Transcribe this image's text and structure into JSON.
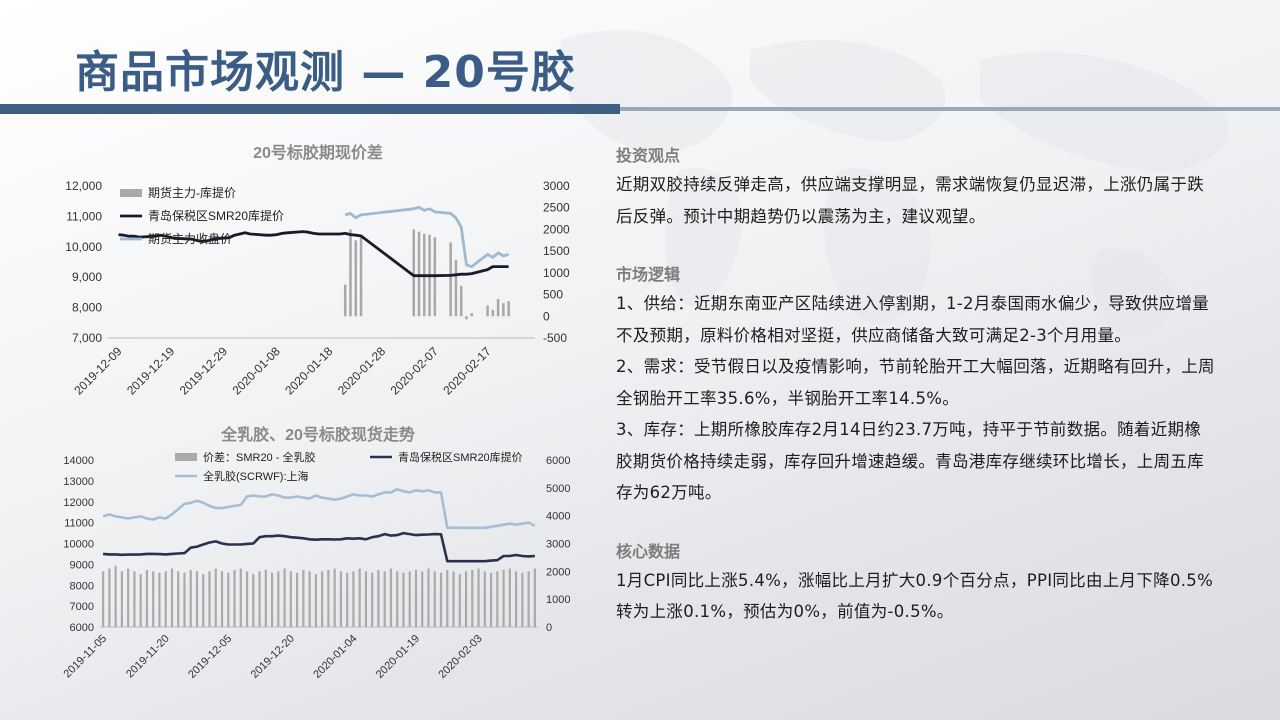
{
  "page_title": "商品市场观测 — 20号胶",
  "chart_data": [
    {
      "type": "bar",
      "title": "20号标胶期现价差",
      "x_ticks": [
        "2019-12-09",
        "2019-12-19",
        "2019-12-29",
        "2020-01-08",
        "2020-01-18",
        "2020-01-28",
        "2020-02-07",
        "2020-02-17"
      ],
      "y_left": {
        "range": [
          7000,
          12000
        ],
        "ticks": [
          "12,000",
          "11,000",
          "10,000",
          "9,000",
          "8,000",
          "7,000"
        ]
      },
      "y_right": {
        "range": [
          -500,
          3000
        ],
        "ticks": [
          "3000",
          "2500",
          "2000",
          "1500",
          "1000",
          "500",
          "0",
          "-500"
        ]
      },
      "series": [
        {
          "name": "期货主力-库提价",
          "axis": "right",
          "kind": "bar",
          "color": "#a8a8a8",
          "x": [
            "2020-01-21",
            "2020-01-22",
            "2020-01-23",
            "2020-01-24",
            "2020-02-03",
            "2020-02-04",
            "2020-02-05",
            "2020-02-06",
            "2020-02-07",
            "2020-02-10",
            "2020-02-11",
            "2020-02-12",
            "2020-02-13",
            "2020-02-14",
            "2020-02-17",
            "2020-02-18",
            "2020-02-19",
            "2020-02-20",
            "2020-02-21"
          ],
          "values": [
            730,
            2000,
            1750,
            1850,
            2000,
            1950,
            1900,
            1880,
            1820,
            1700,
            1300,
            700,
            -70,
            70,
            250,
            150,
            400,
            300,
            350
          ]
        },
        {
          "name": "青岛保税区SMR20库提价",
          "axis": "left",
          "kind": "line",
          "color": "#1a1a2a",
          "x": [
            "2019-12-09",
            "2019-12-10",
            "2019-12-11",
            "2019-12-12",
            "2019-12-13",
            "2019-12-16",
            "2019-12-17",
            "2019-12-18",
            "2019-12-19",
            "2019-12-20",
            "2019-12-23",
            "2019-12-24",
            "2019-12-25",
            "2019-12-26",
            "2019-12-27",
            "2019-12-30",
            "2019-12-31",
            "2020-01-02",
            "2020-01-03",
            "2020-01-06",
            "2020-01-07",
            "2020-01-08",
            "2020-01-09",
            "2020-01-10",
            "2020-01-13",
            "2020-01-14",
            "2020-01-15",
            "2020-01-16",
            "2020-01-17",
            "2020-01-20",
            "2020-01-21",
            "2020-01-22",
            "2020-01-23",
            "2020-01-24",
            "2020-02-03",
            "2020-02-04",
            "2020-02-05",
            "2020-02-06",
            "2020-02-07",
            "2020-02-10",
            "2020-02-11",
            "2020-02-12",
            "2020-02-13",
            "2020-02-14",
            "2020-02-17",
            "2020-02-18",
            "2020-02-19",
            "2020-02-20",
            "2020-02-21"
          ],
          "values": [
            10400,
            10380,
            10350,
            10350,
            10320,
            10350,
            10380,
            10350,
            10300,
            10280,
            10250,
            10200,
            10180,
            10200,
            10260,
            10300,
            10380,
            10460,
            10420,
            10380,
            10380,
            10400,
            10440,
            10460,
            10500,
            10480,
            10440,
            10420,
            10420,
            10420,
            10440,
            10400,
            10380,
            10360,
            9050,
            9050,
            9050,
            9050,
            9050,
            9060,
            9080,
            9100,
            9100,
            9120,
            9250,
            9350,
            9350,
            9350,
            9350
          ]
        },
        {
          "name": "期货主力收盘价",
          "axis": "left",
          "kind": "line",
          "color": "#9fb9d2",
          "x": [
            "2020-01-21",
            "2020-01-22",
            "2020-01-23",
            "2020-01-24",
            "2020-02-03",
            "2020-02-04",
            "2020-02-05",
            "2020-02-06",
            "2020-02-07",
            "2020-02-10",
            "2020-02-11",
            "2020-02-12",
            "2020-02-13",
            "2020-02-14",
            "2020-02-17",
            "2020-02-18",
            "2020-02-19",
            "2020-02-20",
            "2020-02-21"
          ],
          "values": [
            11050,
            11100,
            10950,
            11050,
            11250,
            11300,
            11200,
            11250,
            11150,
            11100,
            10950,
            10650,
            9400,
            9350,
            9750,
            9650,
            9800,
            9700,
            9750
          ]
        }
      ]
    },
    {
      "type": "bar",
      "title": "全乳胶、20号标胶现货走势",
      "x_ticks": [
        "2019-11-05",
        "2019-11-20",
        "2019-12-05",
        "2019-12-20",
        "2020-01-04",
        "2020-01-19",
        "2020-02-03"
      ],
      "y_left": {
        "range": [
          6000,
          14000
        ],
        "ticks": [
          "14000",
          "13000",
          "12000",
          "11000",
          "10000",
          "9000",
          "8000",
          "7000",
          "6000"
        ]
      },
      "y_right": {
        "range": [
          0,
          6000
        ],
        "ticks": [
          "6000",
          "5000",
          "4000",
          "3000",
          "2000",
          "1000",
          "0"
        ]
      },
      "series": [
        {
          "name": "价差：SMR20 - 全乳胶",
          "axis": "right",
          "kind": "bar",
          "color": "#aaaaaa",
          "values": [
            2000,
            2100,
            2200,
            2000,
            2100,
            2000,
            1900,
            2050,
            2000,
            1950,
            2000,
            2100,
            2000,
            1950,
            2050,
            2000,
            1900,
            2000,
            2100,
            2000,
            1950,
            2050,
            2100,
            2000,
            1900,
            2000,
            2050,
            1950,
            2000,
            2100,
            2000,
            1950,
            2050,
            2000,
            1900,
            2000,
            2050,
            2100,
            2000,
            1950,
            2000,
            2100,
            2000,
            1950,
            2050,
            2000,
            2100,
            2000,
            1950,
            2000,
            2050,
            2000,
            2100,
            2000,
            1950,
            2050,
            2000,
            1900,
            2000,
            2050,
            2100,
            2000,
            1950,
            2000,
            2050,
            2100,
            2000,
            1950,
            2000,
            2100
          ]
        },
        {
          "name": "青岛保税区SMR20库提价",
          "axis": "left",
          "kind": "line",
          "color": "#2a3150",
          "values": [
            9500,
            9480,
            9480,
            9460,
            9470,
            9470,
            9480,
            9500,
            9500,
            9490,
            9480,
            9500,
            9520,
            9540,
            9800,
            9850,
            9950,
            10050,
            10100,
            10000,
            9950,
            9950,
            9950,
            9980,
            10000,
            10300,
            10350,
            10350,
            10380,
            10350,
            10300,
            10280,
            10250,
            10200,
            10180,
            10200,
            10200,
            10190,
            10200,
            10250,
            10230,
            10250,
            10200,
            10300,
            10350,
            10450,
            10380,
            10400,
            10500,
            10450,
            10400,
            10420,
            10430,
            10450,
            10440,
            9150,
            9150,
            9150,
            9150,
            9150,
            9150,
            9150,
            9180,
            9200,
            9400,
            9400,
            9450,
            9400,
            9380,
            9400
          ]
        },
        {
          "name": "全乳胶(SCRWF):上海",
          "axis": "left",
          "kind": "line",
          "color": "#a7bdd3",
          "values": [
            11300,
            11400,
            11300,
            11250,
            11200,
            11250,
            11300,
            11200,
            11150,
            11250,
            11200,
            11400,
            11650,
            11900,
            11950,
            12050,
            11950,
            11800,
            11700,
            11700,
            11750,
            11800,
            11850,
            12250,
            12300,
            12250,
            12250,
            12350,
            12300,
            12200,
            12200,
            12250,
            12200,
            12150,
            12300,
            12200,
            12150,
            12100,
            12150,
            12250,
            12350,
            12300,
            12300,
            12250,
            12350,
            12450,
            12450,
            12600,
            12500,
            12450,
            12550,
            12500,
            12550,
            12450,
            12450,
            10750,
            10750,
            10750,
            10750,
            10750,
            10750,
            10750,
            10800,
            10850,
            10900,
            10950,
            10900,
            10950,
            11000,
            10850
          ]
        }
      ]
    }
  ],
  "sections": [
    {
      "heading": "投资观点",
      "body": "近期双胶持续反弹走高，供应端支撑明显，需求端恢复仍显迟滞，上涨仍属于跌后反弹。预计中期趋势仍以震荡为主，建议观望。"
    },
    {
      "heading": "市场逻辑",
      "body": "1、供给：近期东南亚产区陆续进入停割期，1-2月泰国雨水偏少，导致供应增量不及预期，原料价格相对坚挺，供应商储备大致可满足2-3个月用量。\n2、需求：受节假日以及疫情影响，节前轮胎开工大幅回落，近期略有回升，上周全钢胎开工率35.6%，半钢胎开工率14.5%。\n3、库存：上期所橡胶库存2月14日约23.7万吨，持平于节前数据。随着近期橡胶期货价格持续走弱，库存回升增速趋缓。青岛港库存继续环比增长，上周五库存为62万吨。"
    },
    {
      "heading": "核心数据",
      "body": "1月CPI同比上涨5.4%，涨幅比上月扩大0.9个百分点，PPI同比由上月下降0.5%转为上涨0.1%，预估为0%，前值为-0.5%。"
    }
  ],
  "colors": {
    "title": "#3b5c84",
    "accent_bar": "#3f5f86",
    "heading_gray": "#7d7d7d"
  }
}
